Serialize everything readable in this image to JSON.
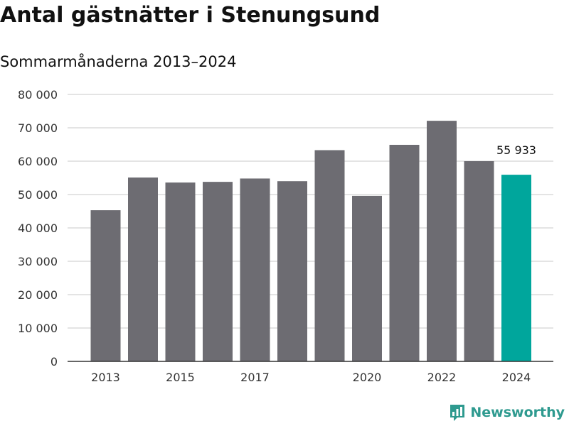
{
  "title": "Antal gästnätter i Stenungsund",
  "subtitle": "Sommarmånaderna 2013–2024",
  "brand": {
    "name": "Newsworthy",
    "color": "#2e9a8f",
    "icon": "newsworthy-logo-icon"
  },
  "chart_data": {
    "type": "bar",
    "categories": [
      "2013",
      "2014",
      "2015",
      "2016",
      "2017",
      "2018",
      "2019",
      "2020",
      "2021",
      "2022",
      "2023",
      "2024"
    ],
    "values": [
      45300,
      55100,
      53600,
      53800,
      54800,
      54000,
      63300,
      49600,
      64900,
      72100,
      60000,
      55933
    ],
    "x_tick_labels": [
      "2013",
      "2015",
      "2017",
      "2020",
      "2022",
      "2024"
    ],
    "y_ticks": [
      0,
      10000,
      20000,
      30000,
      40000,
      50000,
      60000,
      70000,
      80000
    ],
    "y_tick_labels": [
      "0",
      "10 000",
      "20 000",
      "30 000",
      "40 000",
      "50 000",
      "60 000",
      "70 000",
      "80 000"
    ],
    "ylim": [
      0,
      80000
    ],
    "xlabel": "",
    "ylabel": "",
    "grid": true,
    "bar_color": "#6d6c72",
    "highlight_color": "#00a69c",
    "highlight_category": "2024",
    "data_labels": [
      {
        "category": "2024",
        "text": "55 933"
      }
    ]
  }
}
